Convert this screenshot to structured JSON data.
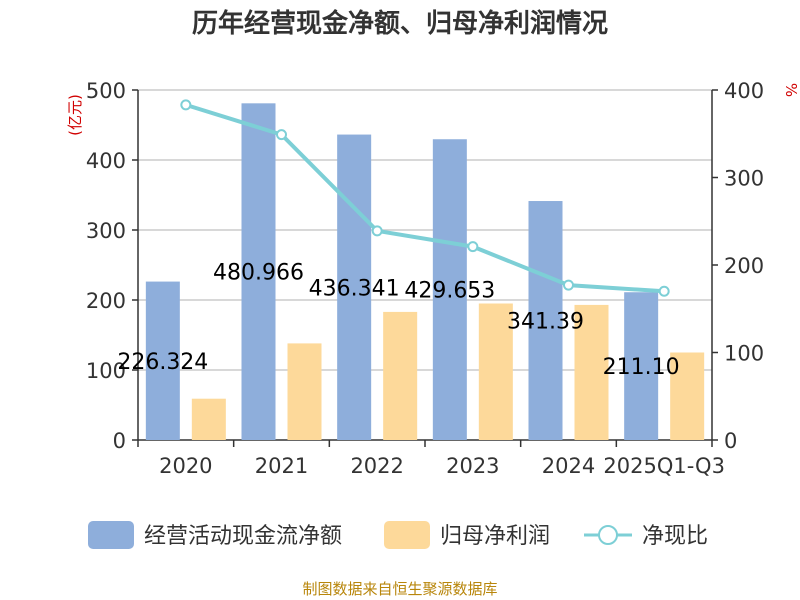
{
  "chart_data": {
    "type": "bar",
    "title": "历年经营现金净额、归母净利润情况",
    "categories": [
      "2020",
      "2021",
      "2022",
      "2023",
      "2024",
      "2025Q1-Q3"
    ],
    "series": [
      {
        "name": "经营活动现金流净额",
        "type": "bar",
        "axis": "left",
        "color": "#8eaedb",
        "values": [
          226.324,
          480.966,
          436.341,
          429.653,
          341.39,
          211.1
        ],
        "labels": [
          "226.324",
          "480.966",
          "436.341",
          "429.653",
          "341.39",
          "211.10"
        ]
      },
      {
        "name": "归母净利润",
        "type": "bar",
        "axis": "left",
        "color": "#fdd99a",
        "values": [
          59,
          138,
          183,
          195,
          193,
          125
        ]
      },
      {
        "name": "净现比",
        "type": "line",
        "axis": "right",
        "color": "#7dcfd6",
        "values": [
          383,
          349,
          239,
          221,
          177,
          170
        ]
      }
    ],
    "left_axis": {
      "label": "(亿元)",
      "ylim": [
        0,
        500
      ],
      "ticks": [
        "0",
        "100",
        "200",
        "300",
        "400",
        "500"
      ]
    },
    "right_axis": {
      "label": "%",
      "ylim": [
        0,
        400
      ],
      "ticks": [
        "0",
        "100",
        "200",
        "300",
        "400"
      ]
    },
    "grid": true,
    "legend_position": "bottom"
  },
  "source": "制图数据来自恒生聚源数据库"
}
